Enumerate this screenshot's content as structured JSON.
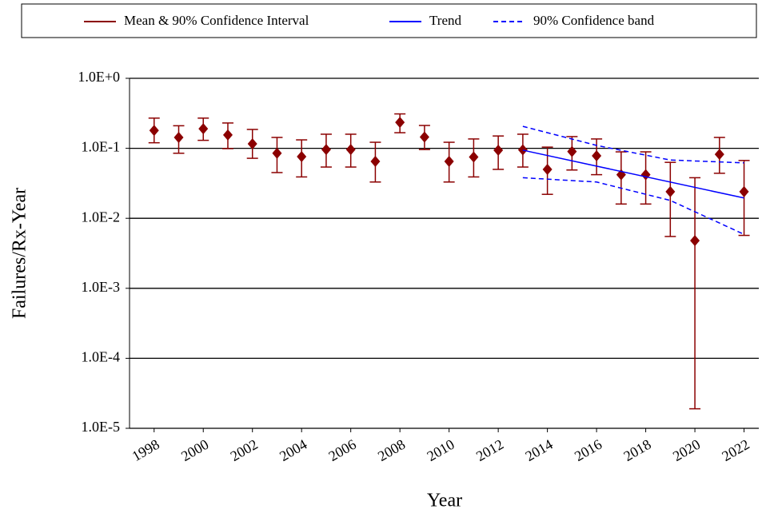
{
  "chart_data": {
    "type": "errorbar",
    "x_label": "Year",
    "y_label": "Failures/Rx-Year",
    "log_y": true,
    "grid": true,
    "legend": "top",
    "x": [
      1998,
      1999,
      2000,
      2001,
      2002,
      2003,
      2004,
      2005,
      2006,
      2007,
      2008,
      2009,
      2010,
      2011,
      2012,
      2013,
      2014,
      2015,
      2016,
      2017,
      2018,
      2019,
      2020,
      2021,
      2022
    ],
    "xlim": [
      1997,
      2022.6
    ],
    "xticks": [
      1998,
      2000,
      2002,
      2004,
      2006,
      2008,
      2010,
      2012,
      2014,
      2016,
      2018,
      2020,
      2022
    ],
    "ylim": [
      1e-05,
      1
    ],
    "yticks": [
      {
        "value": 1e-05,
        "label": "1.0E-5"
      },
      {
        "value": 0.0001,
        "label": "1.0E-4"
      },
      {
        "value": 0.001,
        "label": "1.0E-3"
      },
      {
        "value": 0.01,
        "label": "1.0E-2"
      },
      {
        "value": 0.1,
        "label": "1.0E-1"
      },
      {
        "value": 1,
        "label": "1.0E+0"
      }
    ],
    "series": [
      {
        "name": "Mean & 90% Confidence Interval",
        "color": "#8b0000",
        "values": [
          0.18,
          0.143,
          0.19,
          0.155,
          0.116,
          0.085,
          0.076,
          0.096,
          0.096,
          0.065,
          0.235,
          0.145,
          0.065,
          0.075,
          0.094,
          0.095,
          0.05,
          0.09,
          0.078,
          0.042,
          0.042,
          0.024,
          0.0048,
          0.082,
          0.024
        ],
        "lower": [
          0.12,
          0.085,
          0.13,
          0.099,
          0.072,
          0.045,
          0.039,
          0.054,
          0.054,
          0.033,
          0.167,
          0.096,
          0.033,
          0.039,
          0.05,
          0.054,
          0.022,
          0.049,
          0.042,
          0.016,
          0.016,
          0.0055,
          1.9e-05,
          0.044,
          0.0057
        ],
        "upper": [
          0.27,
          0.21,
          0.27,
          0.23,
          0.186,
          0.143,
          0.132,
          0.159,
          0.159,
          0.122,
          0.31,
          0.212,
          0.122,
          0.136,
          0.15,
          0.159,
          0.104,
          0.147,
          0.136,
          0.089,
          0.089,
          0.063,
          0.038,
          0.143,
          0.067
        ]
      },
      {
        "name": "Trend",
        "color": "#0000ff",
        "x": [
          2013,
          2022
        ],
        "values": [
          0.094,
          0.0195
        ]
      },
      {
        "name": "90% Confidence band",
        "color": "#0000ff",
        "x": [
          2013,
          2016,
          2019,
          2022
        ],
        "upper": [
          0.206,
          0.11,
          0.068,
          0.062
        ],
        "lower": [
          0.038,
          0.033,
          0.018,
          0.0059
        ]
      }
    ]
  }
}
